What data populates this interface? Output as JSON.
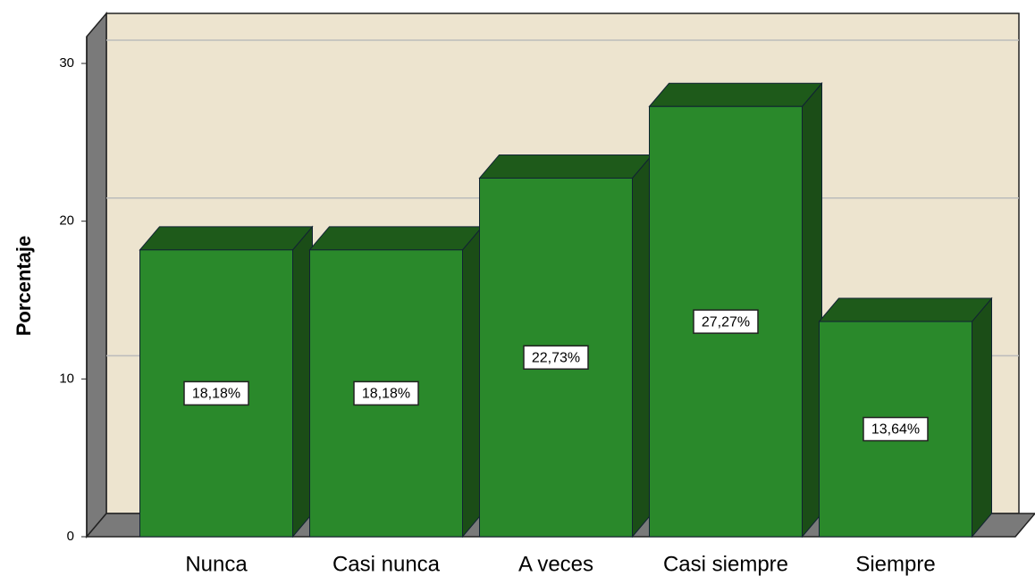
{
  "chart_data": {
    "type": "bar",
    "y_label": "Porcentaje",
    "categories": [
      "Nunca",
      "Casi nunca",
      "A veces",
      "Casi siempre",
      "Siempre"
    ],
    "values": [
      18.18,
      18.18,
      22.73,
      27.27,
      13.64
    ],
    "value_labels": [
      "18,18%",
      "18,18%",
      "22,73%",
      "27,27%",
      "13,64%"
    ],
    "color": "#2a892b",
    "ylim": [
      0,
      31.7
    ],
    "yticks": [
      0,
      10,
      20,
      30
    ],
    "grid": true
  }
}
